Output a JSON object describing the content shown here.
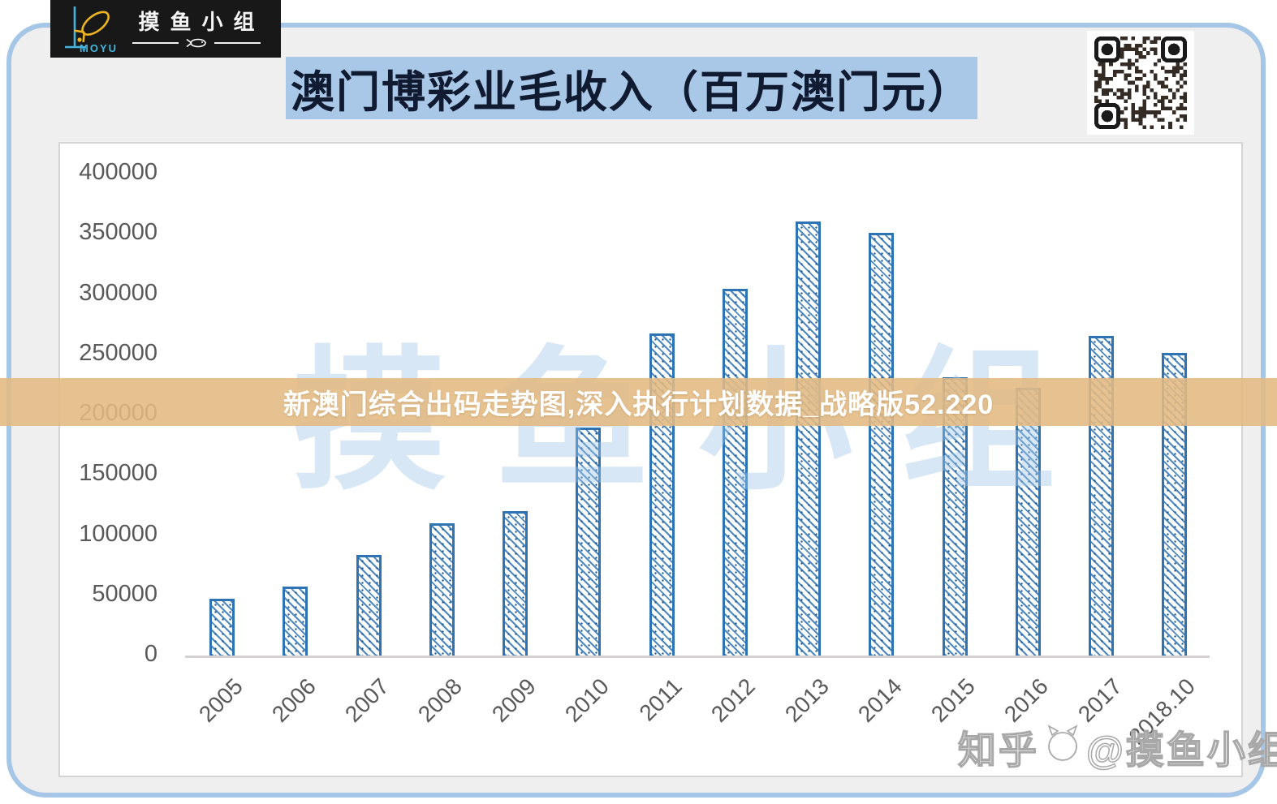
{
  "logo": {
    "brand": "MOYU",
    "group_name": "摸鱼小组"
  },
  "header": {
    "title": "澳门博彩业毛收入（百万澳门元）"
  },
  "banner": {
    "text": "新澳门综合出码走势图,深入执行计划数据_战略版52.220"
  },
  "watermarks": {
    "center_chars": [
      "摸",
      "鱼",
      "小",
      "组"
    ],
    "bottom_right_prefix": "知乎",
    "bottom_right_suffix": "@摸鱼小组"
  },
  "chart_data": {
    "type": "bar",
    "title": "澳门博彩业毛收入（百万澳门元）",
    "categories": [
      "2005",
      "2006",
      "2007",
      "2008",
      "2009",
      "2010",
      "2011",
      "2012",
      "2013",
      "2014",
      "2015",
      "2016",
      "2017",
      "2018.10"
    ],
    "values": [
      47000,
      57500,
      83500,
      109500,
      120000,
      189000,
      267500,
      304500,
      360500,
      351000,
      231000,
      222500,
      265500,
      251500
    ],
    "xlabel": "",
    "ylabel": "",
    "ylim": [
      0,
      400000
    ],
    "yticks": [
      0,
      50000,
      100000,
      150000,
      200000,
      250000,
      300000,
      350000,
      400000
    ],
    "grid": false,
    "legend": "none",
    "bar_style": {
      "fill": "#ffffff",
      "hatch": "diagonal-with-dots",
      "color": "#2e74b5"
    }
  },
  "colors": {
    "card_border": "#a5c6e6",
    "card_background": "#efeff0",
    "title_band": "#a9c7e6",
    "bar_blue": "#2e74b5",
    "banner_tan": "#e4ba82",
    "axis_text": "#595959",
    "logo_yellow": "#edb41f",
    "logo_cyan": "#45b4dd"
  }
}
